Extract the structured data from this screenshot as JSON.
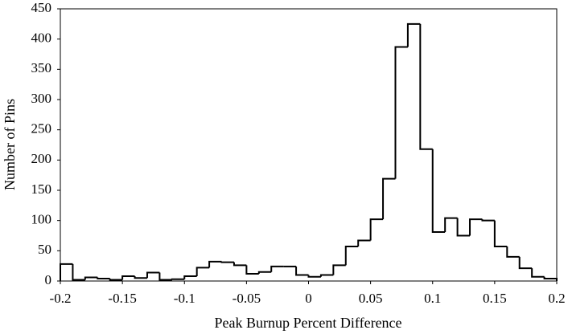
{
  "chart_data": {
    "type": "histogram",
    "x_label": "Peak Burnup Percent Difference",
    "y_label": "Number of Pins",
    "bins": [
      -0.2,
      -0.19,
      -0.18,
      -0.17,
      -0.16,
      -0.15,
      -0.14,
      -0.13,
      -0.12,
      -0.11,
      -0.1,
      -0.09,
      -0.08,
      -0.07,
      -0.06,
      -0.05,
      -0.04,
      -0.03,
      -0.02,
      -0.01,
      0,
      0.01,
      0.02,
      0.03,
      0.04,
      0.05,
      0.06,
      0.07,
      0.08,
      0.09,
      0.1,
      0.11,
      0.12,
      0.13,
      0.14,
      0.15,
      0.16,
      0.17,
      0.18,
      0.19,
      0.2
    ],
    "values": [
      28,
      2,
      6,
      4,
      2,
      8,
      5,
      14,
      2,
      3,
      8,
      22,
      32,
      31,
      26,
      12,
      15,
      24,
      24,
      10,
      7,
      10,
      26,
      57,
      67,
      102,
      169,
      387,
      425,
      218,
      81,
      104,
      75,
      102,
      100,
      57,
      40,
      21,
      7,
      4
    ],
    "color": "#000000",
    "xlim": [
      -0.2,
      0.2
    ],
    "xticks": [
      -0.2,
      -0.15,
      -0.1,
      -0.05,
      0,
      0.05,
      0.1,
      0.15,
      0.2
    ],
    "ylim": [
      0,
      450
    ],
    "yticks": [
      0,
      50,
      100,
      150,
      200,
      250,
      300,
      350,
      400,
      450
    ]
  }
}
